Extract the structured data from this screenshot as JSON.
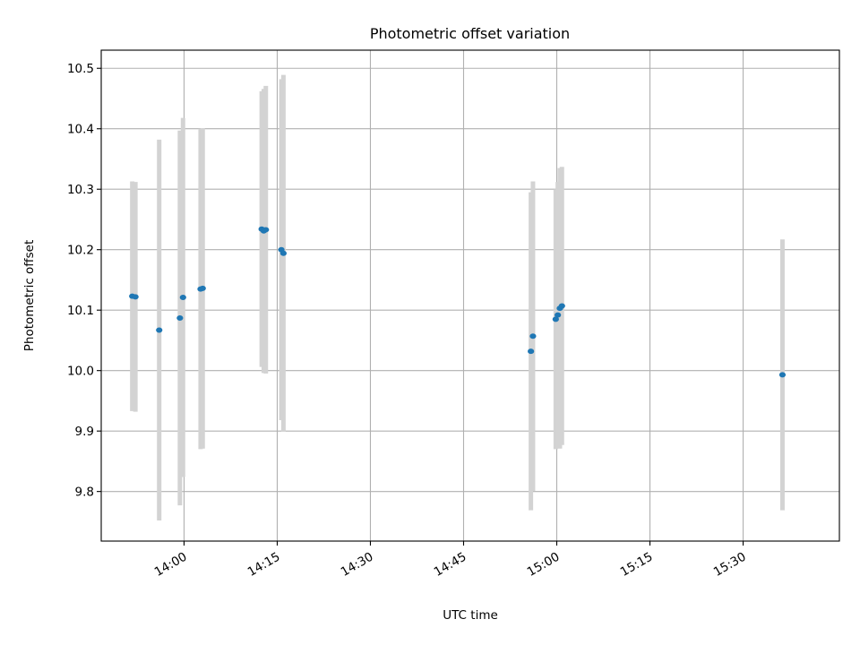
{
  "chart_data": {
    "type": "scatter",
    "title": "Photometric offset variation",
    "xlabel": "UTC time",
    "ylabel": "Photometric offset",
    "xlim": [
      "13:46:40",
      "15:45:30"
    ],
    "ylim": [
      9.718,
      10.53
    ],
    "x_ticks": [
      "14:00",
      "14:15",
      "14:30",
      "14:45",
      "15:00",
      "15:15",
      "15:30"
    ],
    "y_ticks": [
      9.8,
      9.9,
      10.0,
      10.1,
      10.2,
      10.3,
      10.4,
      10.5
    ],
    "grid": true,
    "colors": {
      "marker": "#1f77b4",
      "errorbar": "#d3d3d3",
      "grid": "#b0b0b0"
    },
    "points": [
      {
        "x": "13:51:40",
        "y": 10.123,
        "err": 0.19
      },
      {
        "x": "13:52:10",
        "y": 10.122,
        "err": 0.19
      },
      {
        "x": "13:56:00",
        "y": 10.067,
        "err": 0.315
      },
      {
        "x": "13:59:20",
        "y": 10.087,
        "err": 0.31
      },
      {
        "x": "13:59:50",
        "y": 10.121,
        "err": 0.297
      },
      {
        "x": "14:02:40",
        "y": 10.135,
        "err": 0.265
      },
      {
        "x": "14:03:00",
        "y": 10.136,
        "err": 0.265
      },
      {
        "x": "14:12:30",
        "y": 10.234,
        "err": 0.228
      },
      {
        "x": "14:12:50",
        "y": 10.231,
        "err": 0.235
      },
      {
        "x": "14:13:10",
        "y": 10.233,
        "err": 0.238
      },
      {
        "x": "14:15:40",
        "y": 10.2,
        "err": 0.282
      },
      {
        "x": "14:16:00",
        "y": 10.194,
        "err": 0.295
      },
      {
        "x": "14:55:50",
        "y": 10.032,
        "err": 0.263
      },
      {
        "x": "14:56:10",
        "y": 10.057,
        "err": 0.256
      },
      {
        "x": "14:59:50",
        "y": 10.085,
        "err": 0.215
      },
      {
        "x": "15:00:10",
        "y": 10.092,
        "err": 0.22
      },
      {
        "x": "15:00:30",
        "y": 10.103,
        "err": 0.232
      },
      {
        "x": "15:00:50",
        "y": 10.107,
        "err": 0.23
      },
      {
        "x": "15:36:20",
        "y": 9.993,
        "err": 0.224
      }
    ]
  }
}
